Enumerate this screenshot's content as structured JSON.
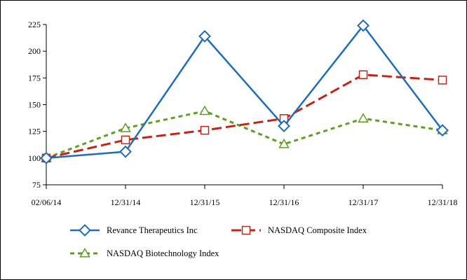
{
  "chart_data": {
    "type": "line",
    "title": "",
    "xlabel": "",
    "ylabel": "",
    "categories": [
      "02/06/14",
      "12/31/14",
      "12/31/15",
      "12/31/16",
      "12/31/17",
      "12/31/18"
    ],
    "ylim": [
      75,
      225
    ],
    "yticks": [
      75,
      100,
      125,
      150,
      175,
      200,
      225
    ],
    "grid": false,
    "legend_position": "bottom",
    "series": [
      {
        "name": "Revance Therapeutics Inc",
        "values": [
          100,
          106,
          214,
          130,
          224,
          126
        ],
        "color": "#1f6db5",
        "line_style": "solid",
        "marker": "diamond"
      },
      {
        "name": "NASDAQ Composite Index",
        "values": [
          100,
          117,
          126,
          137,
          178,
          173
        ],
        "color": "#c0251b",
        "line_style": "dashed",
        "marker": "square"
      },
      {
        "name": "NASDAQ Biotechnology Index",
        "values": [
          100,
          128,
          144,
          113,
          137,
          126
        ],
        "color": "#5f9e25",
        "line_style": "dotted",
        "marker": "triangle"
      }
    ]
  }
}
